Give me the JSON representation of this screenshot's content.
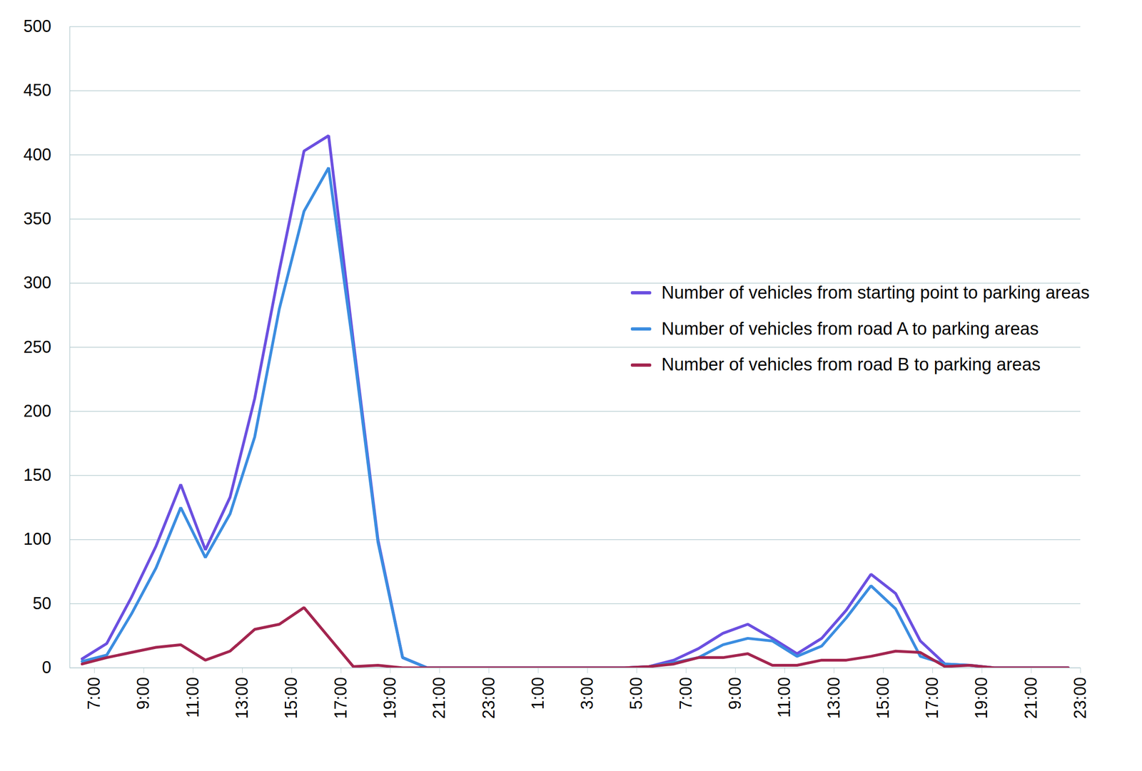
{
  "chart_data": {
    "type": "line",
    "x": [
      6.5,
      7.5,
      8.5,
      9.5,
      10.5,
      11.5,
      12.5,
      13.5,
      14.5,
      15.5,
      16.5,
      17.5,
      18.5,
      19.5,
      20.5,
      21.5,
      22.5,
      23.5,
      24.5,
      25.5,
      26.5,
      27.5,
      28.5,
      29.5,
      30.5,
      31.5,
      32.5,
      33.5,
      34.5,
      35.5,
      36.5,
      37.5,
      38.5,
      39.5,
      40.5,
      41.5,
      42.5,
      43.5,
      44.5,
      45.5,
      46.5
    ],
    "xlim": [
      6,
      47
    ],
    "xticks": [
      {
        "value": 7,
        "label": "7:00"
      },
      {
        "value": 9,
        "label": "9:00"
      },
      {
        "value": 11,
        "label": "11:00"
      },
      {
        "value": 13,
        "label": "13:00"
      },
      {
        "value": 15,
        "label": "15:00"
      },
      {
        "value": 17,
        "label": "17:00"
      },
      {
        "value": 19,
        "label": "19:00"
      },
      {
        "value": 21,
        "label": "21:00"
      },
      {
        "value": 23,
        "label": "23:00"
      },
      {
        "value": 25,
        "label": "1:00"
      },
      {
        "value": 27,
        "label": "3:00"
      },
      {
        "value": 29,
        "label": "5:00"
      },
      {
        "value": 31,
        "label": "7:00"
      },
      {
        "value": 33,
        "label": "9:00"
      },
      {
        "value": 35,
        "label": "11:00"
      },
      {
        "value": 37,
        "label": "13:00"
      },
      {
        "value": 39,
        "label": "15:00"
      },
      {
        "value": 41,
        "label": "17:00"
      },
      {
        "value": 43,
        "label": "19:00"
      },
      {
        "value": 45,
        "label": "21:00"
      },
      {
        "value": 47,
        "label": "23:00"
      }
    ],
    "ylim": [
      0,
      500
    ],
    "yticks": [
      0,
      50,
      100,
      150,
      200,
      250,
      300,
      350,
      400,
      450,
      500
    ],
    "grid": true,
    "legend": "right",
    "series": [
      {
        "name": "Number of vehicles from starting point to parking areas",
        "color": "#6b4fe0",
        "values": [
          7,
          19,
          55,
          95,
          143,
          92,
          133,
          210,
          310,
          403,
          415,
          255,
          100,
          8,
          0,
          0,
          0,
          0,
          0,
          0,
          0,
          0,
          0,
          1,
          6,
          15,
          27,
          34,
          23,
          11,
          23,
          45,
          73,
          58,
          21,
          3,
          2,
          0,
          0,
          0,
          0
        ]
      },
      {
        "name": "Number of vehicles from road A to parking areas",
        "color": "#3b8de0",
        "values": [
          5,
          10,
          42,
          78,
          125,
          86,
          120,
          180,
          280,
          356,
          390,
          250,
          98,
          8,
          0,
          0,
          0,
          0,
          0,
          0,
          0,
          0,
          0,
          1,
          4,
          8,
          18,
          23,
          21,
          9,
          17,
          39,
          64,
          46,
          9,
          3,
          2,
          0,
          0,
          0,
          0
        ]
      },
      {
        "name": "Number of vehicles from road B to parking areas",
        "color": "#a3254f",
        "values": [
          3,
          8,
          12,
          16,
          18,
          6,
          13,
          30,
          34,
          47,
          24,
          1,
          2,
          0,
          0,
          0,
          0,
          0,
          0,
          0,
          0,
          0,
          0,
          1,
          3,
          8,
          8,
          11,
          2,
          2,
          6,
          6,
          9,
          13,
          12,
          1,
          2,
          0,
          0,
          0,
          0
        ]
      }
    ]
  }
}
